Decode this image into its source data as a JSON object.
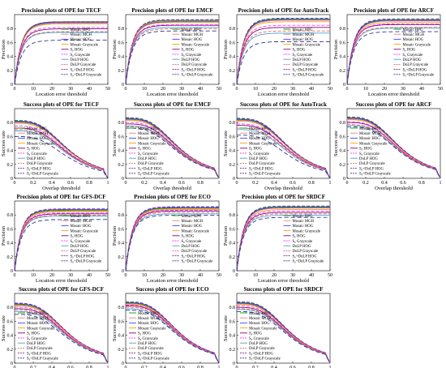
{
  "legend_labels": [
    "Mosaic HPG",
    "Mosaic MGH",
    "Mosaic HOG",
    "Mosaic Grayscale",
    "S₀ HOG",
    "S₀ Grayscale",
    "DoLP HOG",
    "DoLP Grayscale",
    "S₀+DoLP HOG",
    "S₀+DoLP Grayscale"
  ],
  "series_colors": [
    "#00a000",
    "#f08080",
    "#4040ff",
    "#ffa000",
    "#800080",
    "#ff40ff",
    "#4d9fd9",
    "#e07050",
    "#8020a0",
    "#303090"
  ],
  "precision_axis": {
    "xlabel": "Location error threshold",
    "ylabel": "Precision",
    "xticks": [
      0,
      10,
      20,
      30,
      40,
      50
    ],
    "yticks": [
      0,
      0.2,
      0.4,
      0.6,
      0.8
    ],
    "xlim": [
      0,
      50
    ],
    "ylim": [
      0,
      1
    ]
  },
  "success_axis": {
    "xlabel": "Overlap threshold",
    "ylabel": "Success rate",
    "xticks": [
      0,
      0.2,
      0.4,
      0.6,
      0.8,
      1
    ],
    "yticks": [
      0,
      0.2,
      0.4,
      0.6,
      0.8
    ],
    "xlim": [
      0,
      1
    ],
    "ylim": [
      0,
      1
    ]
  },
  "chart_data": [
    {
      "type": "line",
      "kind": "precision",
      "title": "Precision plots of OPE for TECF",
      "plateaus": [
        0.88,
        0.86,
        0.87,
        0.85,
        0.78,
        0.8,
        0.73,
        0.74,
        0.88,
        0.62
      ]
    },
    {
      "type": "line",
      "kind": "precision",
      "title": "Precision plots of OPE for EMCF",
      "plateaus": [
        0.9,
        0.89,
        0.88,
        0.87,
        0.83,
        0.84,
        0.8,
        0.78,
        0.91,
        0.75
      ]
    },
    {
      "type": "line",
      "kind": "precision",
      "title": "Precision plots of OPE for AutoTrack",
      "plateaus": [
        0.92,
        0.9,
        0.91,
        0.88,
        0.8,
        0.83,
        0.72,
        0.75,
        0.93,
        0.6
      ]
    },
    {
      "type": "line",
      "kind": "precision",
      "title": "Precision plots of OPE for ARCF",
      "plateaus": [
        0.91,
        0.89,
        0.9,
        0.87,
        0.84,
        0.85,
        0.79,
        0.8,
        0.92,
        0.74
      ]
    },
    {
      "type": "line",
      "kind": "success",
      "title": "Success plots of OPE for TECF",
      "starts": [
        0.82,
        0.8,
        0.81,
        0.79,
        0.72,
        0.75,
        0.68,
        0.7,
        0.83,
        0.6
      ]
    },
    {
      "type": "line",
      "kind": "success",
      "title": "Success plots of OPE for EMCF",
      "starts": [
        0.86,
        0.84,
        0.85,
        0.83,
        0.78,
        0.8,
        0.75,
        0.74,
        0.87,
        0.72
      ]
    },
    {
      "type": "line",
      "kind": "success",
      "title": "Success plots of OPE for AutoTrack",
      "starts": [
        0.85,
        0.83,
        0.84,
        0.82,
        0.76,
        0.78,
        0.7,
        0.72,
        0.86,
        0.62
      ]
    },
    {
      "type": "line",
      "kind": "success",
      "title": "Success plots of OPE for ARCF",
      "starts": [
        0.87,
        0.85,
        0.86,
        0.84,
        0.8,
        0.81,
        0.76,
        0.77,
        0.88,
        0.74
      ]
    },
    {
      "type": "line",
      "kind": "precision",
      "title": "Precision plots of OPE for GFS-DCF",
      "plateaus": [
        0.85,
        0.83,
        0.86,
        0.84,
        0.8,
        0.81,
        0.77,
        0.78,
        0.87,
        0.72
      ]
    },
    {
      "type": "line",
      "kind": "precision",
      "title": "Precision plots of OPE for ECO",
      "plateaus": [
        0.88,
        0.86,
        0.89,
        0.87,
        0.84,
        0.85,
        0.8,
        0.82,
        0.9,
        0.78
      ]
    },
    {
      "type": "line",
      "kind": "precision",
      "title": "Precision plots of OPE for SRDCF",
      "plateaus": [
        0.9,
        0.88,
        0.89,
        0.86,
        0.82,
        0.84,
        0.78,
        0.8,
        0.91,
        0.75
      ]
    },
    {
      "type": "line",
      "kind": "success",
      "title": "Success plots of OPE for GFS-DCF",
      "starts": [
        0.84,
        0.82,
        0.85,
        0.83,
        0.78,
        0.8,
        0.74,
        0.76,
        0.86,
        0.7
      ]
    },
    {
      "type": "line",
      "kind": "success",
      "title": "Success plots of OPE for ECO",
      "starts": [
        0.86,
        0.84,
        0.87,
        0.85,
        0.82,
        0.83,
        0.78,
        0.8,
        0.88,
        0.76
      ]
    },
    {
      "type": "line",
      "kind": "success",
      "title": "Success plots of OPE for SRDCF",
      "starts": [
        0.87,
        0.85,
        0.86,
        0.84,
        0.8,
        0.82,
        0.77,
        0.78,
        0.88,
        0.74
      ]
    }
  ]
}
